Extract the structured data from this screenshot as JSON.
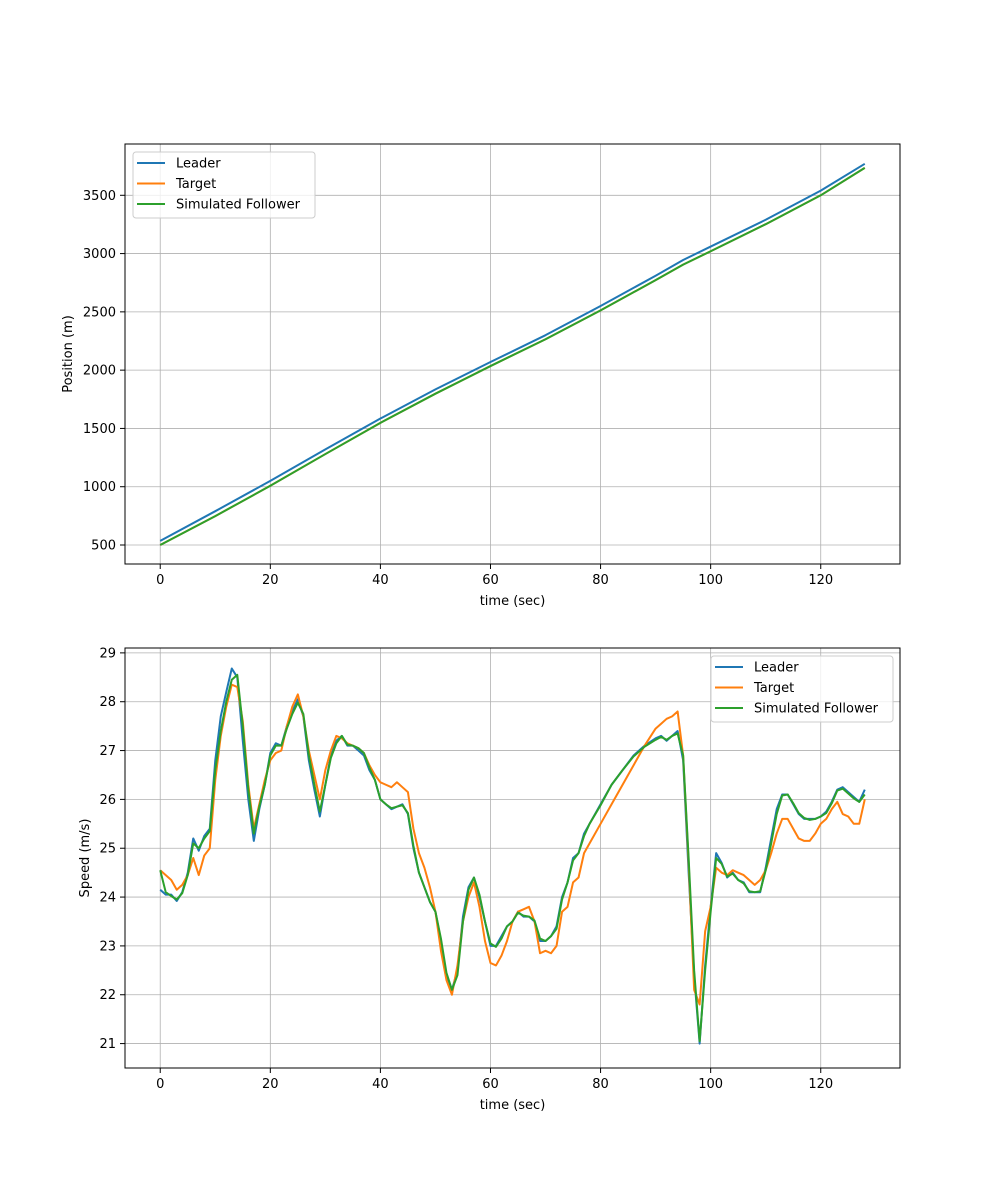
{
  "colors": {
    "leader": "#1f77b4",
    "target": "#ff7f0e",
    "follower": "#2ca02c",
    "grid": "#b0b0b0",
    "frame": "#000000",
    "legend_border": "#cccccc"
  },
  "chart_data": [
    {
      "type": "line",
      "xlabel": "time (sec)",
      "ylabel": "Position (m)",
      "xlim": [
        -6.4,
        134.4
      ],
      "ylim": [
        337,
        3940
      ],
      "xticks": [
        0,
        20,
        40,
        60,
        80,
        100,
        120
      ],
      "yticks": [
        500,
        1000,
        1500,
        2000,
        2500,
        3000,
        3500
      ],
      "grid": true,
      "legend_position": "upper-left",
      "series": [
        {
          "name": "Leader",
          "color": "#1f77b4",
          "x": [
            0,
            10,
            20,
            30,
            40,
            50,
            60,
            70,
            80,
            90,
            95,
            100,
            110,
            120,
            128
          ],
          "y": [
            535,
            790,
            1050,
            1320,
            1585,
            1835,
            2070,
            2300,
            2550,
            2810,
            2945,
            3060,
            3290,
            3540,
            3770
          ]
        },
        {
          "name": "Target",
          "color": "#ff7f0e",
          "x": [
            0,
            10,
            20,
            30,
            40,
            50,
            60,
            70,
            80,
            90,
            95,
            100,
            110,
            120,
            128
          ],
          "y": [
            500,
            748,
            1008,
            1280,
            1548,
            1798,
            2035,
            2265,
            2513,
            2772,
            2905,
            3020,
            3252,
            3500,
            3735
          ]
        },
        {
          "name": "Simulated Follower",
          "color": "#2ca02c",
          "x": [
            0,
            10,
            20,
            30,
            40,
            50,
            60,
            70,
            80,
            90,
            95,
            100,
            110,
            120,
            128
          ],
          "y": [
            500,
            748,
            1008,
            1280,
            1548,
            1798,
            2035,
            2265,
            2513,
            2772,
            2905,
            3020,
            3252,
            3500,
            3735
          ]
        }
      ]
    },
    {
      "type": "line",
      "xlabel": "time (sec)",
      "ylabel": "Speed (m/s)",
      "xlim": [
        -6.4,
        134.4
      ],
      "ylim": [
        20.5,
        29.1
      ],
      "xticks": [
        0,
        20,
        40,
        60,
        80,
        100,
        120
      ],
      "yticks": [
        21,
        22,
        23,
        24,
        25,
        26,
        27,
        28,
        29
      ],
      "grid": true,
      "legend_position": "upper-right",
      "series": [
        {
          "name": "Leader",
          "color": "#1f77b4",
          "x": [
            0,
            1,
            2,
            3,
            4,
            5,
            6,
            7,
            8,
            9,
            10,
            11,
            12,
            13,
            14,
            15,
            16,
            17,
            18,
            19,
            20,
            21,
            22,
            23,
            24,
            25,
            26,
            27,
            28,
            29,
            30,
            31,
            32,
            33,
            34,
            35,
            36,
            37,
            38,
            39,
            40,
            41,
            42,
            43,
            44,
            45,
            46,
            47,
            48,
            49,
            50,
            51,
            52,
            53,
            54,
            55,
            56,
            57,
            58,
            59,
            60,
            61,
            62,
            63,
            64,
            65,
            66,
            67,
            68,
            69,
            70,
            71,
            72,
            73,
            74,
            75,
            76,
            77,
            78,
            80,
            82,
            84,
            86,
            88,
            90,
            91,
            92,
            93,
            94,
            95,
            96,
            97,
            98,
            99,
            100,
            101,
            102,
            103,
            104,
            105,
            106,
            107,
            108,
            109,
            110,
            111,
            112,
            113,
            114,
            115,
            116,
            117,
            118,
            119,
            120,
            121,
            122,
            123,
            124,
            125,
            126,
            127,
            128
          ],
          "y": [
            24.15,
            24.05,
            24.05,
            23.92,
            24.1,
            24.5,
            25.2,
            24.95,
            25.25,
            25.4,
            26.8,
            27.7,
            28.2,
            28.68,
            28.5,
            27.2,
            26.0,
            25.15,
            25.8,
            26.3,
            26.95,
            27.15,
            27.1,
            27.5,
            27.8,
            28.05,
            27.7,
            26.8,
            26.2,
            25.65,
            26.3,
            26.9,
            27.2,
            27.3,
            27.1,
            27.1,
            27.0,
            26.9,
            26.6,
            26.4,
            26.0,
            25.9,
            25.8,
            25.85,
            25.9,
            25.7,
            25.0,
            24.5,
            24.2,
            23.9,
            23.7,
            23.1,
            22.4,
            22.1,
            22.5,
            23.6,
            24.2,
            24.4,
            24.0,
            23.5,
            23.0,
            23.0,
            23.2,
            23.4,
            23.5,
            23.7,
            23.6,
            23.6,
            23.5,
            23.1,
            23.1,
            23.2,
            23.4,
            24.0,
            24.3,
            24.8,
            24.9,
            25.3,
            25.5,
            25.9,
            26.3,
            26.6,
            26.9,
            27.1,
            27.25,
            27.3,
            27.2,
            27.3,
            27.4,
            26.8,
            24.5,
            22.4,
            21.0,
            22.6,
            23.8,
            24.9,
            24.7,
            24.4,
            24.5,
            24.35,
            24.3,
            24.1,
            24.1,
            24.1,
            24.6,
            25.2,
            25.8,
            26.1,
            26.1,
            25.9,
            25.7,
            25.6,
            25.6,
            25.6,
            25.65,
            25.75,
            25.95,
            26.2,
            26.25,
            26.15,
            26.05,
            25.95,
            26.2
          ]
        },
        {
          "name": "Target",
          "color": "#ff7f0e",
          "x": [
            0,
            1,
            2,
            3,
            4,
            5,
            6,
            7,
            8,
            9,
            10,
            11,
            12,
            13,
            14,
            15,
            16,
            17,
            18,
            19,
            20,
            21,
            22,
            23,
            24,
            25,
            26,
            27,
            28,
            29,
            30,
            31,
            32,
            33,
            34,
            35,
            36,
            37,
            38,
            39,
            40,
            41,
            42,
            43,
            44,
            45,
            46,
            47,
            48,
            49,
            50,
            51,
            52,
            53,
            54,
            55,
            56,
            57,
            58,
            59,
            60,
            61,
            62,
            63,
            64,
            65,
            66,
            67,
            68,
            69,
            70,
            71,
            72,
            73,
            74,
            75,
            76,
            77,
            78,
            80,
            82,
            84,
            86,
            88,
            90,
            91,
            92,
            93,
            94,
            95,
            96,
            97,
            98,
            99,
            100,
            101,
            102,
            103,
            104,
            105,
            106,
            107,
            108,
            109,
            110,
            111,
            112,
            113,
            114,
            115,
            116,
            117,
            118,
            119,
            120,
            121,
            122,
            123,
            124,
            125,
            126,
            127,
            128
          ],
          "y": [
            24.55,
            24.45,
            24.35,
            24.15,
            24.25,
            24.45,
            24.8,
            24.45,
            24.85,
            25.0,
            26.4,
            27.3,
            27.9,
            28.35,
            28.3,
            27.6,
            26.3,
            25.4,
            25.9,
            26.4,
            26.8,
            26.95,
            27.0,
            27.5,
            27.9,
            28.15,
            27.7,
            27.0,
            26.5,
            26.0,
            26.6,
            27.0,
            27.3,
            27.25,
            27.15,
            27.1,
            27.05,
            26.95,
            26.7,
            26.5,
            26.35,
            26.3,
            26.25,
            26.35,
            26.25,
            26.15,
            25.4,
            24.9,
            24.6,
            24.2,
            23.7,
            22.9,
            22.3,
            22.0,
            22.6,
            23.5,
            24.0,
            24.3,
            23.8,
            23.1,
            22.65,
            22.6,
            22.8,
            23.1,
            23.5,
            23.7,
            23.75,
            23.8,
            23.5,
            22.85,
            22.9,
            22.85,
            23.0,
            23.7,
            23.8,
            24.3,
            24.4,
            24.9,
            25.1,
            25.5,
            25.9,
            26.3,
            26.7,
            27.1,
            27.45,
            27.55,
            27.65,
            27.7,
            27.8,
            26.9,
            24.7,
            22.1,
            21.8,
            23.3,
            23.8,
            24.6,
            24.5,
            24.45,
            24.55,
            24.5,
            24.45,
            24.35,
            24.25,
            24.35,
            24.55,
            24.9,
            25.3,
            25.6,
            25.6,
            25.4,
            25.2,
            25.15,
            25.15,
            25.3,
            25.5,
            25.6,
            25.8,
            25.95,
            25.7,
            25.65,
            25.5,
            25.5,
            26.0
          ]
        },
        {
          "name": "Simulated Follower",
          "color": "#2ca02c",
          "x": [
            0,
            1,
            2,
            3,
            4,
            5,
            6,
            7,
            8,
            9,
            10,
            11,
            12,
            13,
            14,
            15,
            16,
            17,
            18,
            19,
            20,
            21,
            22,
            23,
            24,
            25,
            26,
            27,
            28,
            29,
            30,
            31,
            32,
            33,
            34,
            35,
            36,
            37,
            38,
            39,
            40,
            41,
            42,
            43,
            44,
            45,
            46,
            47,
            48,
            49,
            50,
            51,
            52,
            53,
            54,
            55,
            56,
            57,
            58,
            59,
            60,
            61,
            62,
            63,
            64,
            65,
            66,
            67,
            68,
            69,
            70,
            71,
            72,
            73,
            74,
            75,
            76,
            77,
            78,
            80,
            82,
            84,
            86,
            88,
            90,
            91,
            92,
            93,
            94,
            95,
            96,
            97,
            98,
            99,
            100,
            101,
            102,
            103,
            104,
            105,
            106,
            107,
            108,
            109,
            110,
            111,
            112,
            113,
            114,
            115,
            116,
            117,
            118,
            119,
            120,
            121,
            122,
            123,
            124,
            125,
            126,
            127,
            128
          ],
          "y": [
            24.55,
            24.1,
            24.02,
            23.95,
            24.08,
            24.45,
            25.1,
            25.0,
            25.2,
            25.35,
            26.6,
            27.4,
            28.0,
            28.45,
            28.55,
            27.5,
            26.2,
            25.3,
            25.85,
            26.3,
            26.9,
            27.1,
            27.1,
            27.45,
            27.75,
            27.98,
            27.75,
            26.9,
            26.3,
            25.75,
            26.3,
            26.85,
            27.15,
            27.3,
            27.12,
            27.1,
            27.05,
            26.95,
            26.65,
            26.4,
            26.0,
            25.9,
            25.82,
            25.85,
            25.88,
            25.72,
            25.05,
            24.5,
            24.2,
            23.9,
            23.7,
            23.15,
            22.45,
            22.1,
            22.4,
            23.5,
            24.15,
            24.4,
            24.05,
            23.5,
            23.05,
            22.98,
            23.15,
            23.4,
            23.5,
            23.68,
            23.62,
            23.6,
            23.52,
            23.15,
            23.1,
            23.2,
            23.35,
            23.95,
            24.3,
            24.75,
            24.9,
            25.25,
            25.5,
            25.88,
            26.3,
            26.6,
            26.88,
            27.08,
            27.22,
            27.28,
            27.22,
            27.3,
            27.35,
            26.9,
            24.8,
            22.5,
            21.05,
            22.5,
            23.7,
            24.8,
            24.68,
            24.42,
            24.48,
            24.35,
            24.28,
            24.12,
            24.1,
            24.12,
            24.55,
            25.1,
            25.7,
            26.08,
            26.1,
            25.92,
            25.72,
            25.62,
            25.58,
            25.6,
            25.65,
            25.72,
            25.92,
            26.18,
            26.22,
            26.12,
            26.02,
            25.95,
            26.1
          ]
        }
      ]
    }
  ]
}
